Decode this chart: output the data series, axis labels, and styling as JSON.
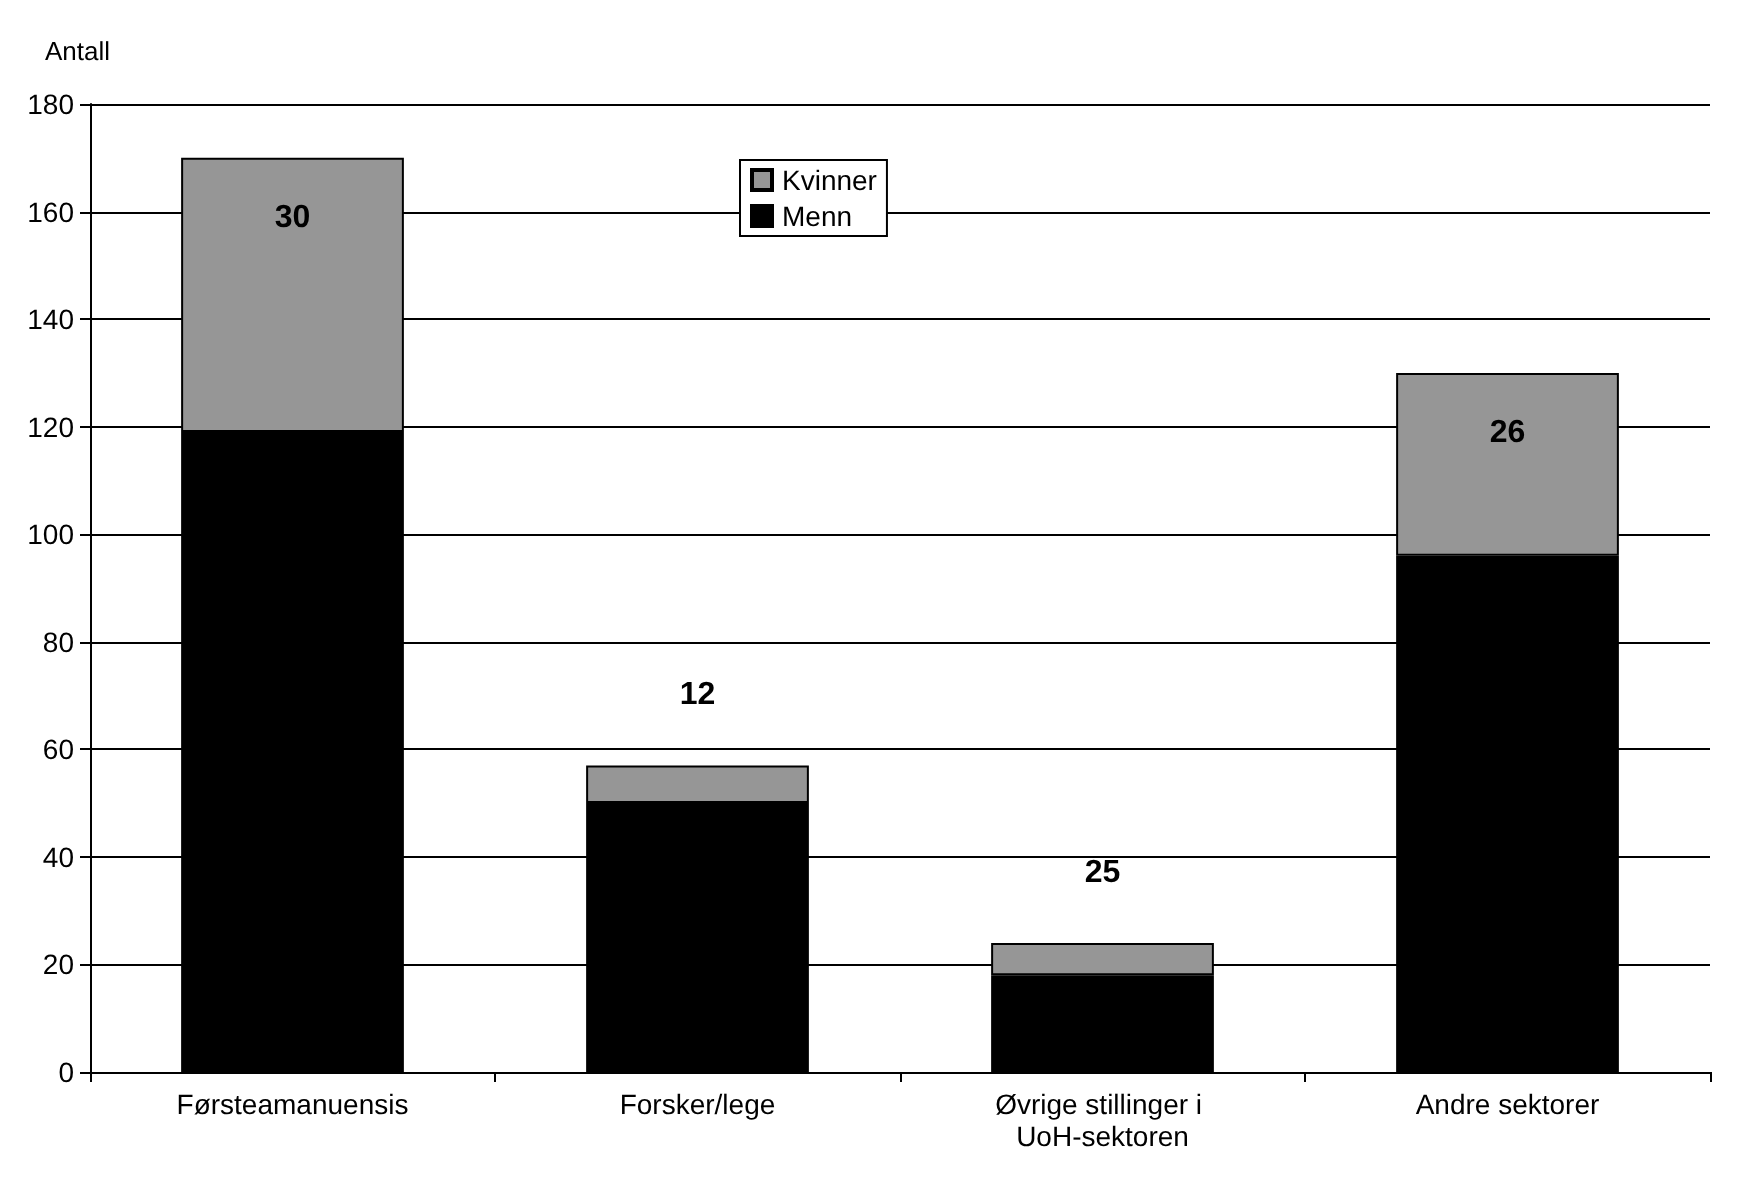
{
  "chart_data": {
    "type": "bar",
    "stacked": true,
    "ylabel": "Antall",
    "categories": [
      "Førsteamanuensis",
      "Forsker/lege",
      "Øvrige stillinger i UoH-sektoren",
      "Andre sektorer"
    ],
    "series": [
      {
        "name": "Menn",
        "color": "#000000",
        "values": [
          119,
          50,
          18,
          96
        ]
      },
      {
        "name": "Kvinner",
        "color": "#969696",
        "values": [
          51,
          7,
          6,
          34
        ]
      }
    ],
    "annotations": [
      {
        "text": "30",
        "x": "Førsteamanuensis",
        "y": 170
      },
      {
        "text": "12",
        "x": "Forsker/lege",
        "y": 57
      },
      {
        "text": "25",
        "x": "Øvrige stillinger i UoH-sektoren",
        "y": 24
      },
      {
        "text": "26",
        "x": "Andre sektorer",
        "y": 130
      }
    ],
    "ylim": [
      0,
      180
    ],
    "yticks": [
      0,
      20,
      40,
      60,
      80,
      100,
      120,
      140,
      160,
      180
    ],
    "grid": "y",
    "legend": "top"
  }
}
